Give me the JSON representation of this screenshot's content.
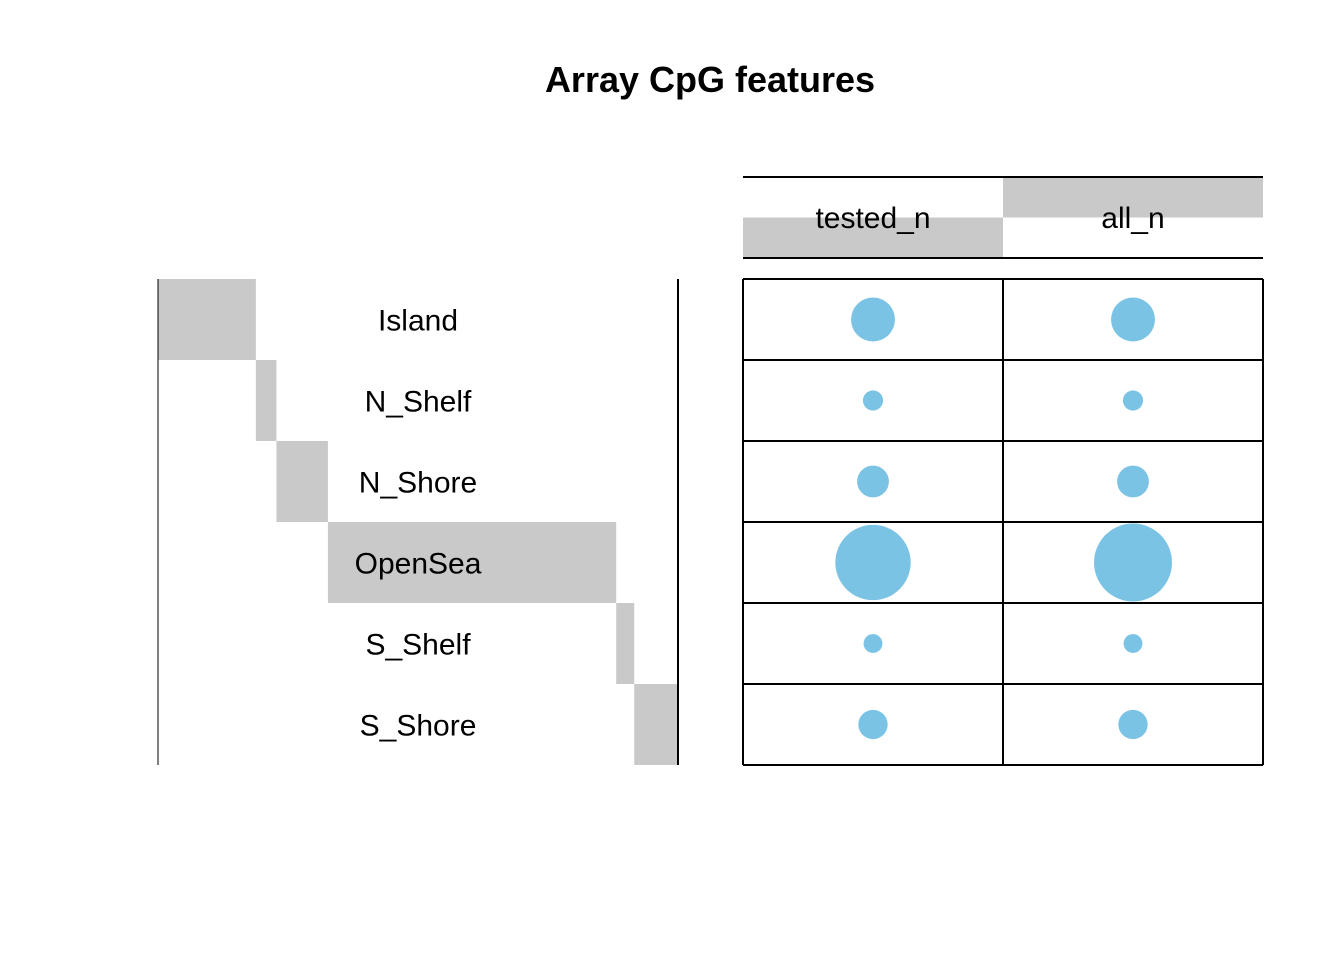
{
  "chart_data": {
    "type": "mosaic-balloon",
    "title": "Array CpG features",
    "categories": [
      "Island",
      "N_Shelf",
      "N_Shore",
      "OpenSea",
      "S_Shelf",
      "S_Shore"
    ],
    "proportions": [
      0.19,
      0.04,
      0.1,
      0.56,
      0.035,
      0.085
    ],
    "columns": [
      "tested_n",
      "all_n"
    ],
    "column_proportions": [
      0.5,
      0.5
    ],
    "series": [
      {
        "name": "tested_n",
        "values": [
          0.19,
          0.04,
          0.1,
          0.56,
          0.035,
          0.085
        ]
      },
      {
        "name": "all_n",
        "values": [
          0.19,
          0.04,
          0.1,
          0.6,
          0.035,
          0.085
        ]
      }
    ],
    "bar_color": "#c9c9c9",
    "balloon_color": "#7bc3e5"
  }
}
